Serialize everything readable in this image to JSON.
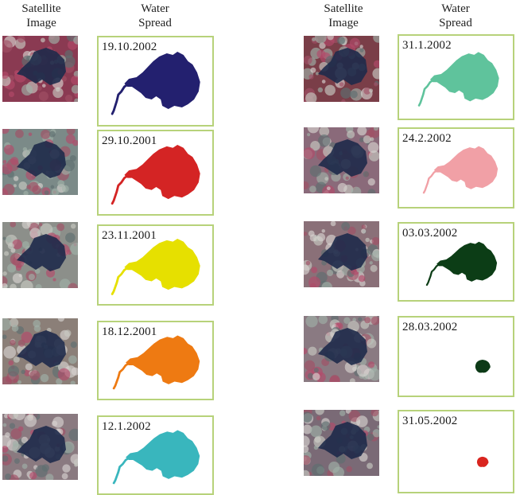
{
  "headers": {
    "satellite": [
      "Satellite",
      "Image"
    ],
    "water": [
      "Water",
      "Spread"
    ]
  },
  "left_column": [
    {
      "date": "19.10.2002",
      "color": "#23206f",
      "satellite_tone": "#8a3a52",
      "level": 1.0
    },
    {
      "date": "29.10.2001",
      "color": "#d42424",
      "satellite_tone": "#7b8a88",
      "level": 1.0
    },
    {
      "date": "23.11.2001",
      "color": "#e6e000",
      "satellite_tone": "#8c8f8a",
      "level": 1.0
    },
    {
      "date": "18.12.2001",
      "color": "#ee7a12",
      "satellite_tone": "#8b7f78",
      "level": 0.95
    },
    {
      "date": "12.1.2002",
      "color": "#39b6bd",
      "satellite_tone": "#8a7a80",
      "level": 0.95
    }
  ],
  "right_column": [
    {
      "date": "31.1.2002",
      "color": "#5fc39c",
      "satellite_tone": "#7a3e48",
      "level": 0.8
    },
    {
      "date": "24.2.2002",
      "color": "#f1a0a6",
      "satellite_tone": "#8a6a7a",
      "level": 0.65
    },
    {
      "date": "03.03.2002",
      "color": "#0c3d16",
      "satellite_tone": "#8a7078",
      "level": 0.55
    },
    {
      "date": "28.03.2002",
      "color": "#0d3a17",
      "satellite_tone": "#8a7a82",
      "level": 0.25
    },
    {
      "date": "31.05.2002",
      "color": "#d9251f",
      "satellite_tone": "#7a6a76",
      "level": 0.15
    }
  ]
}
